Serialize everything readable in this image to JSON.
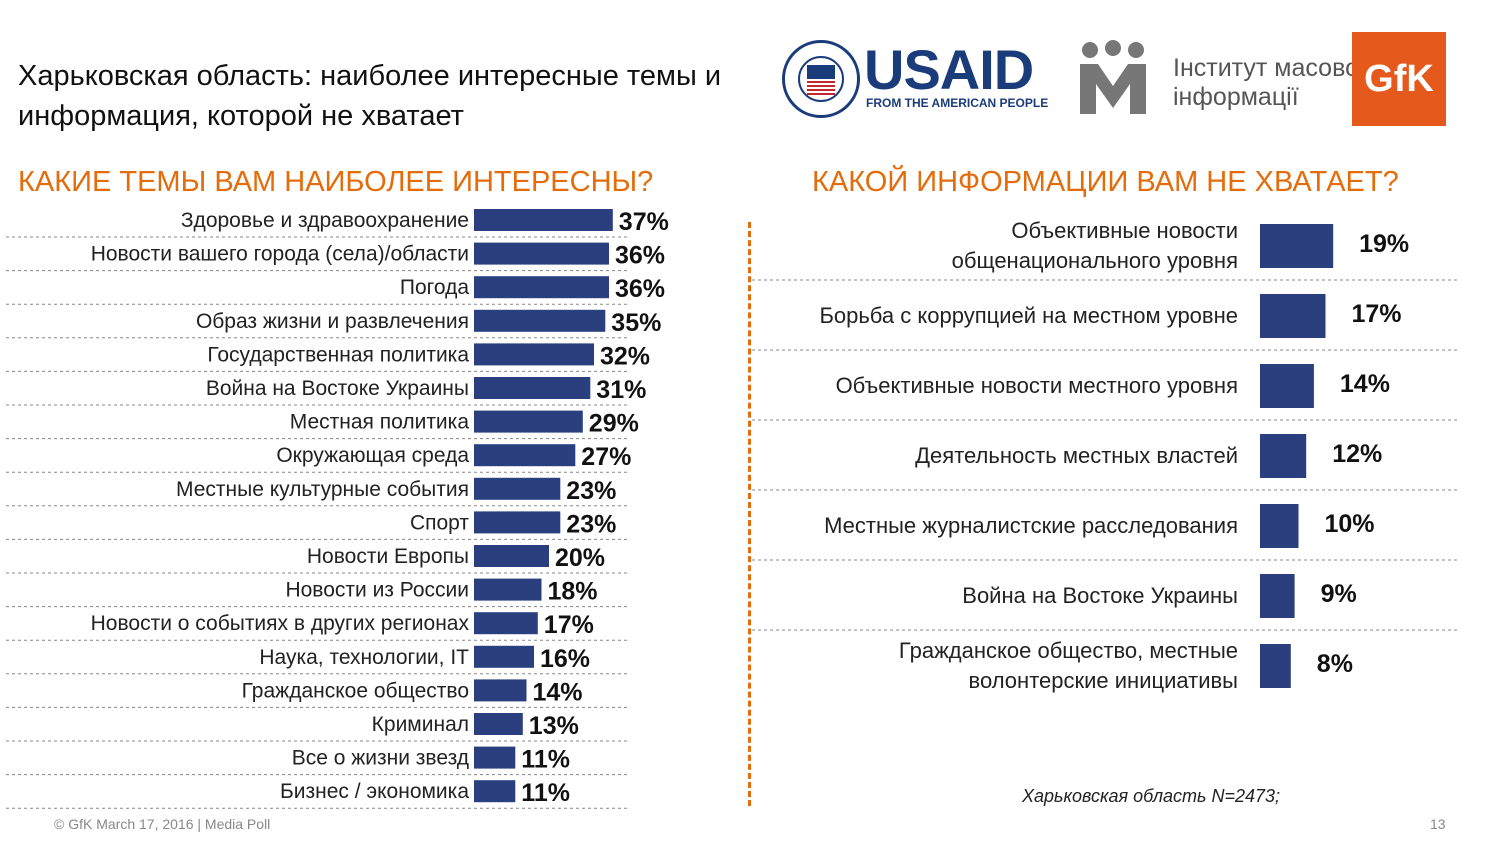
{
  "title": "Харьковская область: наиболее интересные темы и информация, которой не хватает",
  "logos": {
    "usaid_word": "USAID",
    "usaid_sub": "FROM THE AMERICAN PEOPLE",
    "imi_line1": "Інститут масової",
    "imi_line2": "інформації",
    "gfk": "GfK"
  },
  "colors": {
    "bar": "#2b3f7f",
    "accent": "#e46c0a",
    "text": "#222222",
    "grid": "#888888"
  },
  "chart_data": [
    {
      "type": "bar",
      "orientation": "horizontal",
      "title": "КАКИЕ ТЕМЫ ВАМ НАИБОЛЕЕ ИНТЕРЕСНЫ?",
      "categories": [
        "Здоровье и здравоохранение",
        "Новости вашего города (села)/области",
        "Погода",
        "Образ жизни и развлечения",
        "Государственная политика",
        "Война на Востоке Украины",
        "Местная политика",
        "Окружающая среда",
        "Местные культурные события",
        "Спорт",
        "Новости Европы",
        "Новости из России",
        "Новости о событиях в других регионах",
        "Наука, технологии, IT",
        "Гражданское общество",
        "Криминал",
        "Все о жизни звезд",
        "Бизнес / экономика"
      ],
      "values": [
        37,
        36,
        36,
        35,
        32,
        31,
        29,
        27,
        23,
        23,
        20,
        18,
        17,
        16,
        14,
        13,
        11,
        11
      ],
      "labels": [
        "37%",
        "36%",
        "36%",
        "35%",
        "32%",
        "31%",
        "29%",
        "27%",
        "23%",
        "23%",
        "20%",
        "18%",
        "17%",
        "16%",
        "14%",
        "13%",
        "11%",
        "11%"
      ]
    },
    {
      "type": "bar",
      "orientation": "horizontal",
      "title": "КАКОЙ ИНФОРМАЦИИ ВАМ НЕ ХВАТАЕТ?",
      "categories": [
        [
          "Объективные новости",
          "общенационального уровня"
        ],
        [
          "Борьба с коррупцией на местном уровне"
        ],
        [
          "Объективные новости местного уровня"
        ],
        [
          "Деятельность местных властей"
        ],
        [
          "Местные журналистские расследования"
        ],
        [
          "Война на Востоке Украины"
        ],
        [
          "Гражданское общество, местные",
          "волонтерские инициативы"
        ]
      ],
      "values": [
        19,
        17,
        14,
        12,
        10,
        9,
        8
      ],
      "labels": [
        "19%",
        "17%",
        "14%",
        "12%",
        "10%",
        "9%",
        "8%"
      ]
    }
  ],
  "note": "Харьковская область N=2473;",
  "footer": {
    "left": "© GfK March 17, 2016 | Media Poll",
    "page": "13"
  }
}
